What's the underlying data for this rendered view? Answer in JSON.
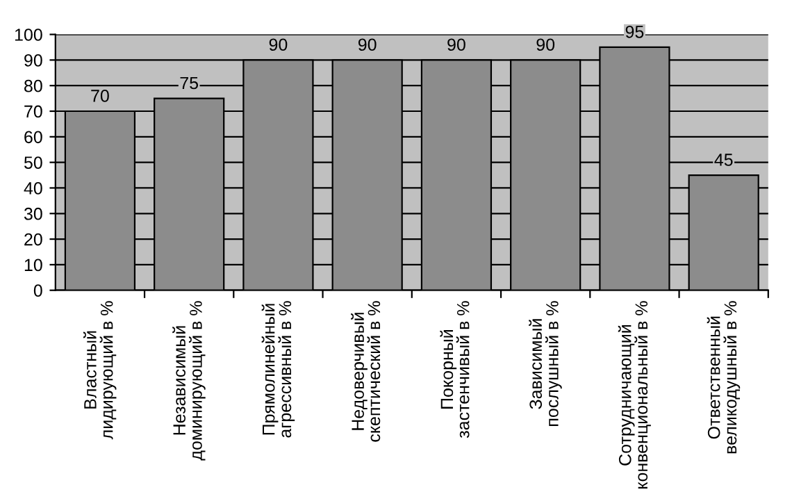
{
  "chart_data": {
    "type": "bar",
    "categories": [
      "Властный лидирующий в %",
      "Независимый доминирующий в %",
      "Прямолинейный агрессивный в %",
      "Недоверчивый скептический в %",
      "Покорный застенчивый в %",
      "Зависимый послушный в %",
      "Сотрудничающий конвенциональный в %",
      "Ответственный великодушный в %"
    ],
    "values": [
      70,
      75,
      90,
      90,
      90,
      90,
      95,
      45
    ],
    "color": "#8c8c8c",
    "ylim": [
      0,
      100
    ],
    "yticks": [
      0,
      10,
      20,
      30,
      40,
      50,
      60,
      70,
      80,
      90,
      100
    ],
    "grid": "y",
    "data_labels": true,
    "legend": false
  }
}
